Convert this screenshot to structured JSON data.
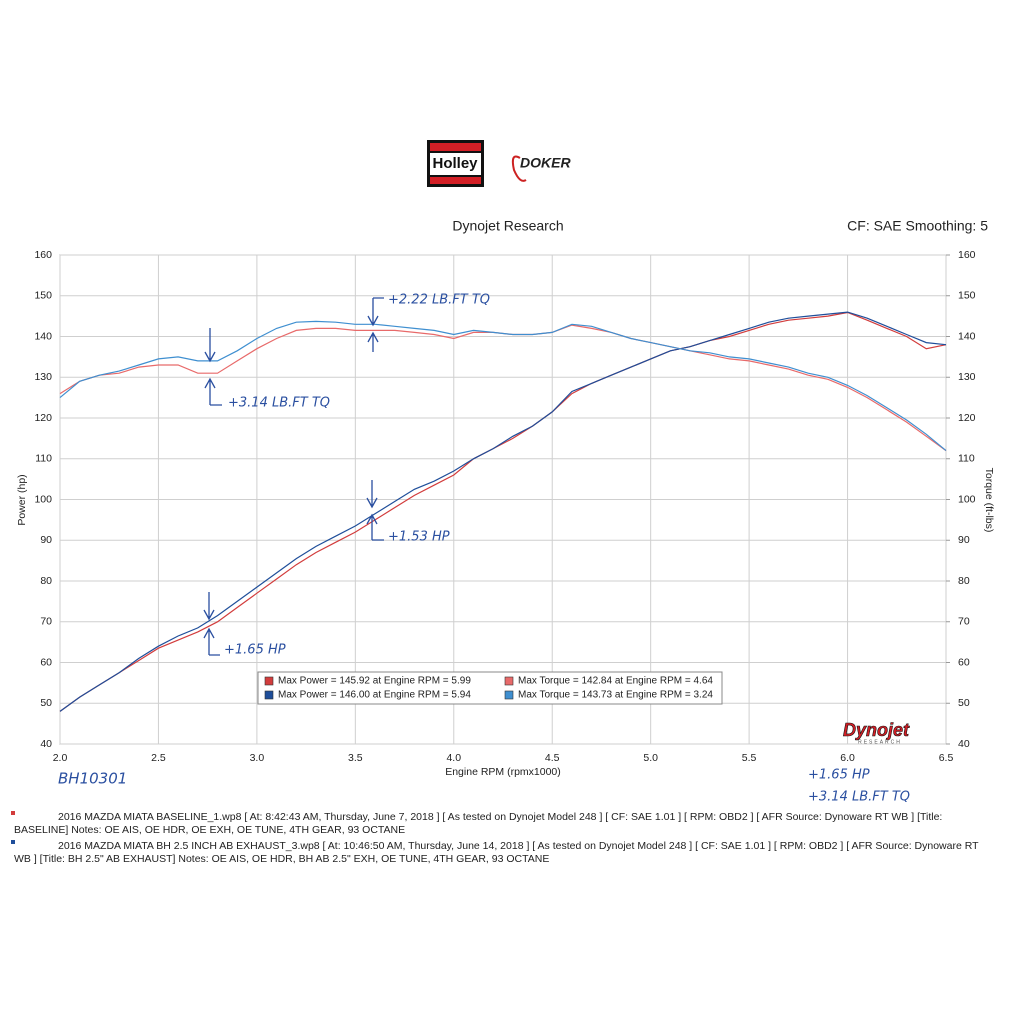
{
  "chart_data": {
    "type": "line",
    "logos": [
      "Holley",
      "DOKER"
    ],
    "title": "Dynojet Research",
    "subtitle": "CF: SAE Smoothing: 5",
    "ylabel": "Power (hp)",
    "y2label": "Torque (ft-lbs)",
    "xlabel": "Engine RPM (rpmx1000)",
    "watermark": "Dynojet",
    "watermark_sub": "RESEARCH",
    "xlim": [
      2.0,
      6.5
    ],
    "xticks": [
      {
        "value": 2,
        "label": "2.0"
      },
      2.5,
      {
        "value": 3,
        "label": "3.0"
      },
      3.5,
      {
        "value": 4,
        "label": "4.0"
      },
      4.5,
      {
        "value": 5,
        "label": "5.0"
      },
      5.5,
      {
        "value": 6,
        "label": "6.0"
      },
      6.5
    ],
    "ylim": [
      40,
      160
    ],
    "yticks": [
      40,
      50,
      60,
      70,
      80,
      90,
      100,
      110,
      120,
      130,
      140,
      150,
      160
    ],
    "y2lim": [
      40,
      160
    ],
    "y2ticks": [
      40,
      50,
      60,
      70,
      80,
      90,
      100,
      110,
      120,
      130,
      140,
      150,
      160
    ],
    "grid": true,
    "x": [
      2.0,
      2.1,
      2.2,
      2.3,
      2.4,
      2.5,
      2.6,
      2.7,
      2.8,
      2.9,
      3.0,
      3.1,
      3.2,
      3.3,
      3.4,
      3.5,
      3.6,
      3.7,
      3.8,
      3.9,
      4.0,
      4.1,
      4.2,
      4.3,
      4.4,
      4.5,
      4.6,
      4.7,
      4.8,
      4.9,
      5.0,
      5.1,
      5.2,
      5.3,
      5.4,
      5.5,
      5.6,
      5.7,
      5.8,
      5.9,
      6.0,
      6.1,
      6.2,
      6.3,
      6.4,
      6.5
    ],
    "series": [
      {
        "name": "Max Power = 145.92 at Engine RPM = 5.99",
        "color": "#d23c3c",
        "values": [
          48,
          51.5,
          54.5,
          57.5,
          60.5,
          63.5,
          65.5,
          67.5,
          70,
          73.5,
          77,
          80.5,
          84,
          87,
          89.5,
          92,
          95,
          98,
          101,
          103.5,
          106,
          110,
          112.5,
          115,
          118,
          121.5,
          126,
          128.5,
          130.5,
          132.5,
          134.5,
          136.5,
          137.5,
          139,
          140,
          141.5,
          143,
          144,
          144.5,
          145,
          145.9,
          144,
          142,
          140,
          137,
          138
        ]
      },
      {
        "name": "Max Power = 146.00 at Engine RPM = 5.94",
        "color": "#1f4e9a",
        "values": [
          48,
          51.5,
          54.5,
          57.5,
          61,
          64,
          66.5,
          68.5,
          71.5,
          75,
          78.5,
          82,
          85.5,
          88.5,
          91,
          93.5,
          96.5,
          99.5,
          102.5,
          104.5,
          107,
          110,
          112.5,
          115.5,
          118,
          121.5,
          126.5,
          128.5,
          130.5,
          132.5,
          134.5,
          136.5,
          137.5,
          139,
          140.5,
          142,
          143.5,
          144.5,
          145,
          145.5,
          146,
          144.5,
          142.5,
          140.5,
          138.5,
          138
        ]
      },
      {
        "name": "Max Torque = 142.84 at Engine RPM = 4.64",
        "color": "#e86a6a",
        "axis": "y2",
        "values": [
          126,
          129,
          130.5,
          131,
          132.5,
          133,
          133,
          131,
          131,
          134,
          137,
          139.5,
          141.5,
          142,
          142,
          141.5,
          141.5,
          141.5,
          141,
          140.5,
          139.5,
          141,
          141,
          140.5,
          140.5,
          141,
          142.8,
          142,
          141,
          139.5,
          138.5,
          137.5,
          136.5,
          135.5,
          134.5,
          134,
          133,
          132,
          130.5,
          129.5,
          127.5,
          125,
          122,
          119,
          115.5,
          112
        ]
      },
      {
        "name": "Max Torque = 143.73 at Engine RPM = 3.24",
        "color": "#3f8fd0",
        "axis": "y2",
        "values": [
          125,
          129,
          130.5,
          131.5,
          133,
          134.5,
          135,
          134,
          134,
          136.5,
          139.5,
          142,
          143.5,
          143.7,
          143.5,
          143,
          143,
          142.5,
          142,
          141.5,
          140.5,
          141.5,
          141,
          140.5,
          140.5,
          141,
          143,
          142.5,
          141,
          139.5,
          138.5,
          137.5,
          136.5,
          136,
          135,
          134.5,
          133.5,
          132.5,
          131,
          130,
          128,
          125.5,
          122.5,
          119.5,
          116,
          112
        ]
      }
    ],
    "annotations": [
      "+2.22 LB.FT TQ",
      "+3.14 LB.FT TQ",
      "+1.53 HP",
      "+1.65 HP",
      "BH10301",
      "+1.65 HP",
      "+3.14 LB.FT TQ"
    ],
    "notes": [
      [
        "2016 MAZDA MIATA BASELINE_1.wp8 [ At: 8:42:43 AM, Thursday, June 7, 2018 ] [ As tested on Dynojet Model 248 ] [ CF: SAE 1.01 ] [ RPM: OBD2 ] [ AFR Source: Dynoware RT WB ] [Title:",
        "BASELINE]  Notes: OE AIS, OE HDR, OE EXH, OE TUNE, 4TH GEAR, 93 OCTANE"
      ],
      [
        "2016 MAZDA MIATA BH 2.5 INCH AB EXHAUST_3.wp8 [ At: 10:46:50 AM, Thursday, June 14, 2018 ] [ As tested on Dynojet Model 248 ] [ CF: SAE 1.01 ] [ RPM: OBD2 ] [ AFR Source: Dynoware RT",
        "WB ] [Title: BH 2.5\" AB EXHAUST]  Notes: OE AIS, OE HDR, BH AB 2.5\" EXH, OE TUNE, 4TH GEAR, 93 OCTANE"
      ]
    ]
  }
}
